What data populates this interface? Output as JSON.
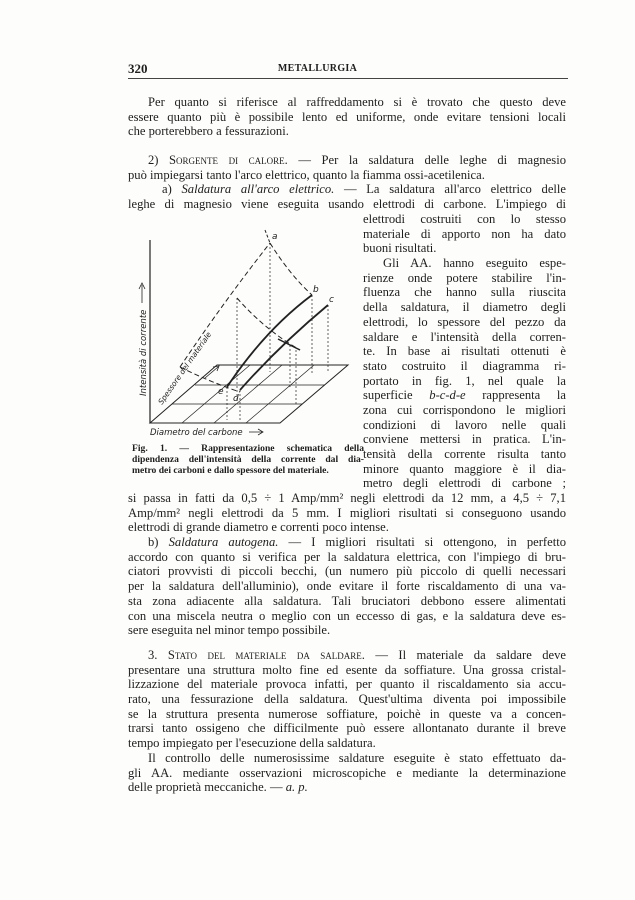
{
  "header": {
    "page_number": "320",
    "running_title": "METALLURGIA"
  },
  "figure": {
    "axis_vertical": "Intensità di corrente",
    "axis_depth": "Spessore del materiale",
    "axis_horizontal": "Diametro del carbone",
    "point_labels": [
      "a",
      "b",
      "c",
      "e",
      "d"
    ],
    "caption_lines": [
      "Fig. 1. — Rappresentazione schematica della",
      "dipendenza dell'intensità della corrente dal dia-",
      "metro dei carboni e dallo spessore del materiale."
    ]
  },
  "blocks": [
    {
      "id": "intro",
      "lines": [
        {
          "c": "ind",
          "r": [
            {
              "t": "Per quanto si riferisce al raffreddamento si è trovato che questo deve"
            }
          ]
        },
        {
          "r": [
            {
              "t": "essere quanto più è possibile lento ed uniforme, onde evitare tensioni locali"
            }
          ]
        },
        {
          "c": "last",
          "r": [
            {
              "t": "che porterebbero a fessurazioni."
            }
          ]
        }
      ]
    },
    {
      "id": "section-2",
      "lines": [
        {
          "c": "ind",
          "r": [
            {
              "t": "2) "
            },
            {
              "t": "Sorgente di calore.",
              "s": "sc"
            },
            {
              "t": " — Per la saldatura delle leghe di magnesio"
            }
          ]
        },
        {
          "c": "last",
          "r": [
            {
              "t": "può impiegarsi tanto l'arco elettrico, quanto la fiamma ossi-acetilenica."
            }
          ]
        },
        {
          "c": "ind2",
          "r": [
            {
              "t": "a) "
            },
            {
              "t": "Saldatura all'arco elettrico.",
              "s": "i"
            },
            {
              "t": " — La saldatura all'arco elettrico delle"
            }
          ]
        },
        {
          "r": [
            {
              "t": "leghe di magnesio viene eseguita usando elettrodi di carbone. L'impiego di"
            }
          ]
        }
      ]
    },
    {
      "id": "right-column",
      "lines": [
        {
          "r": [
            {
              "t": "elettrodi costruiti con lo stesso"
            }
          ]
        },
        {
          "r": [
            {
              "t": "materiale di apporto non ha dato"
            }
          ]
        },
        {
          "c": "last",
          "r": [
            {
              "t": "buoni risultati."
            }
          ]
        },
        {
          "c": "ind",
          "r": [
            {
              "t": "Gli AA. hanno eseguito espe-"
            }
          ]
        },
        {
          "r": [
            {
              "t": "rienze onde potere stabilire l'in-"
            }
          ]
        },
        {
          "r": [
            {
              "t": "fluenza che hanno sulla riuscita"
            }
          ]
        },
        {
          "r": [
            {
              "t": "della saldatura, il diametro degli"
            }
          ]
        },
        {
          "r": [
            {
              "t": "elettrodi, lo spessore del pezzo da"
            }
          ]
        },
        {
          "r": [
            {
              "t": "saldare e l'intensità della corren-"
            }
          ]
        },
        {
          "r": [
            {
              "t": "te. In base ai risultati ottenuti è"
            }
          ]
        },
        {
          "r": [
            {
              "t": "stato costruito il diagramma ri-"
            }
          ]
        },
        {
          "r": [
            {
              "t": "portato in fig. 1, nel quale la"
            }
          ]
        },
        {
          "r": [
            {
              "t": "superficie "
            },
            {
              "t": "b-c-d-e",
              "s": "i"
            },
            {
              "t": " rappresenta la"
            }
          ]
        },
        {
          "r": [
            {
              "t": "zona cui corrispondono le migliori"
            }
          ]
        },
        {
          "r": [
            {
              "t": "condizioni di lavoro nelle quali"
            }
          ]
        },
        {
          "r": [
            {
              "t": "conviene mettersi in pratica. L'in-"
            }
          ]
        },
        {
          "r": [
            {
              "t": "tensità della corrente risulta tanto"
            }
          ]
        },
        {
          "r": [
            {
              "t": "minore quanto maggiore è il dia-"
            }
          ]
        },
        {
          "r": [
            {
              "t": "metro degli elettrodi di carbone ;"
            }
          ]
        }
      ]
    },
    {
      "id": "lower",
      "lines": [
        {
          "r": [
            {
              "t": "si passa in fatti da 0,5 ÷ 1 Amp/mm² negli elettrodi da 12 mm, a 4,5 ÷ 7,1"
            }
          ]
        },
        {
          "r": [
            {
              "t": "Amp/mm² negli elettrodi da 5 mm. I migliori risultati si conseguono usando"
            }
          ]
        },
        {
          "c": "last",
          "r": [
            {
              "t": "elettrodi di grande diametro e correnti poco intense."
            }
          ]
        },
        {
          "c": "ind",
          "r": [
            {
              "t": "b) "
            },
            {
              "t": "Saldatura autogena.",
              "s": "i"
            },
            {
              "t": " — I migliori risultati si ottengono, in perfetto"
            }
          ]
        },
        {
          "r": [
            {
              "t": "accordo con quanto si verifica per la saldatura elettrica, con l'impiego di bru-"
            }
          ]
        },
        {
          "r": [
            {
              "t": "ciatori provvisti di piccoli becchi, (un numero più piccolo di quelli necessari"
            }
          ]
        },
        {
          "r": [
            {
              "t": "per la saldatura dell'alluminio), onde evitare il forte riscaldamento di una va-"
            }
          ]
        },
        {
          "r": [
            {
              "t": "sta zona adiacente alla saldatura. Tali bruciatori debbono essere alimentati"
            }
          ]
        },
        {
          "r": [
            {
              "t": "con una miscela neutra o meglio con un eccesso di gas, e la saldatura deve es-"
            }
          ]
        },
        {
          "c": "last",
          "r": [
            {
              "t": "sere eseguita nel minor tempo possibile."
            }
          ]
        }
      ]
    },
    {
      "id": "section-3",
      "lines": [
        {
          "c": "ind",
          "r": [
            {
              "t": "3. "
            },
            {
              "t": "Stato del materiale da saldare.",
              "s": "sc"
            },
            {
              "t": " — Il materiale da saldare deve"
            }
          ]
        },
        {
          "r": [
            {
              "t": "presentare una struttura molto fine ed esente da soffiature. Una grossa cristal-"
            }
          ]
        },
        {
          "r": [
            {
              "t": "lizzazione del materiale provoca infatti, per quanto il riscaldamento sia accu-"
            }
          ]
        },
        {
          "r": [
            {
              "t": "rato, una fessurazione della saldatura. Quest'ultima diventa poi impossibile"
            }
          ]
        },
        {
          "r": [
            {
              "t": "se la struttura presenta numerose soffiature, poichè in queste va a concen-"
            }
          ]
        },
        {
          "r": [
            {
              "t": "trarsi tanto ossigeno che difficilmente può essere allontanato durante il breve"
            }
          ]
        },
        {
          "c": "last",
          "r": [
            {
              "t": "tempo impiegato per l'esecuzione della saldatura."
            }
          ]
        },
        {
          "c": "ind",
          "r": [
            {
              "t": "Il controllo delle numerosissime saldature eseguite è stato effettuato da-"
            }
          ]
        },
        {
          "r": [
            {
              "t": "gli AA. mediante osservazioni microscopiche e mediante la determinazione"
            }
          ]
        },
        {
          "c": "last",
          "r": [
            {
              "t": "delle proprietà meccaniche. — "
            },
            {
              "t": "a. p.",
              "s": "i"
            }
          ]
        }
      ]
    }
  ]
}
